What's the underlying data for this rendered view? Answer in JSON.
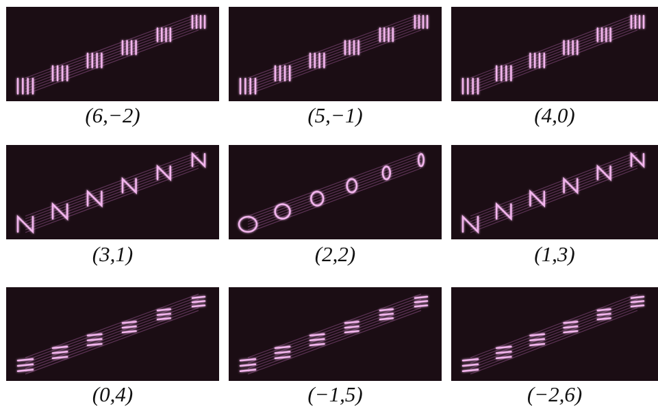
{
  "panels": [
    {
      "caption": "(6,−2)"
    },
    {
      "caption": "(5,−1)"
    },
    {
      "caption": "(4,0)"
    },
    {
      "caption": "(3,1)"
    },
    {
      "caption": "(2,2)"
    },
    {
      "caption": "(1,3)"
    },
    {
      "caption": "(0,4)"
    },
    {
      "caption": "(−1,5)"
    },
    {
      "caption": "(−2,6)"
    }
  ]
}
